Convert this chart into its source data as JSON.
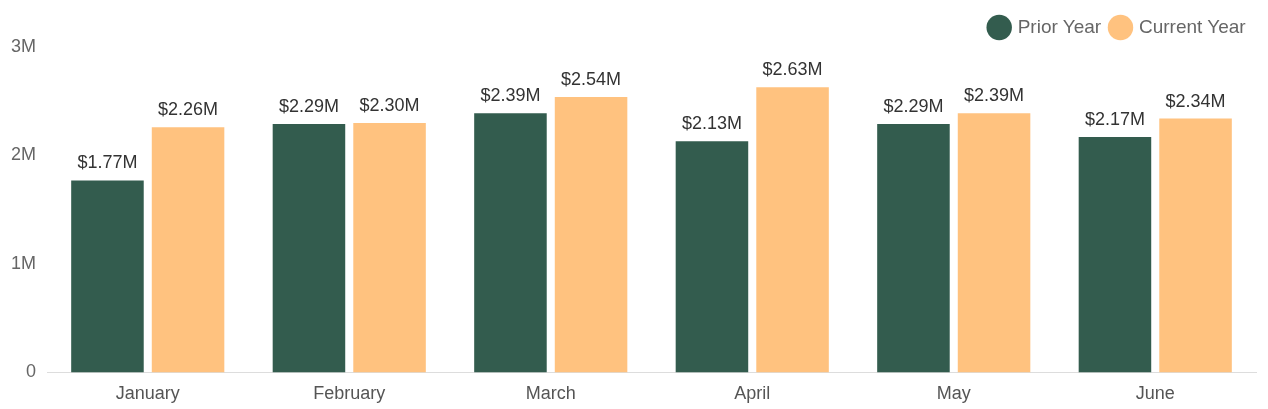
{
  "chart_data": {
    "type": "bar",
    "categories": [
      "January",
      "February",
      "March",
      "April",
      "May",
      "June"
    ],
    "series": [
      {
        "name": "Prior Year",
        "color": "#335c4e",
        "values": [
          1.77,
          2.29,
          2.39,
          2.13,
          2.29,
          2.17
        ],
        "value_labels": [
          "$1.77M",
          "$2.29M",
          "$2.39M",
          "$2.13M",
          "$2.29M",
          "$2.17M"
        ]
      },
      {
        "name": "Current Year",
        "color": "#ffc27f",
        "values": [
          2.26,
          2.3,
          2.54,
          2.63,
          2.39,
          2.34
        ],
        "value_labels": [
          "$2.26M",
          "$2.30M",
          "$2.54M",
          "$2.63M",
          "$2.39M",
          "$2.34M"
        ]
      }
    ],
    "ylim": [
      0,
      3
    ],
    "yticks": [
      {
        "value": 0,
        "label": "0"
      },
      {
        "value": 1,
        "label": "1M"
      },
      {
        "value": 2,
        "label": "2M"
      },
      {
        "value": 3,
        "label": "3M"
      }
    ],
    "legend": "top right",
    "marker": "circle"
  }
}
